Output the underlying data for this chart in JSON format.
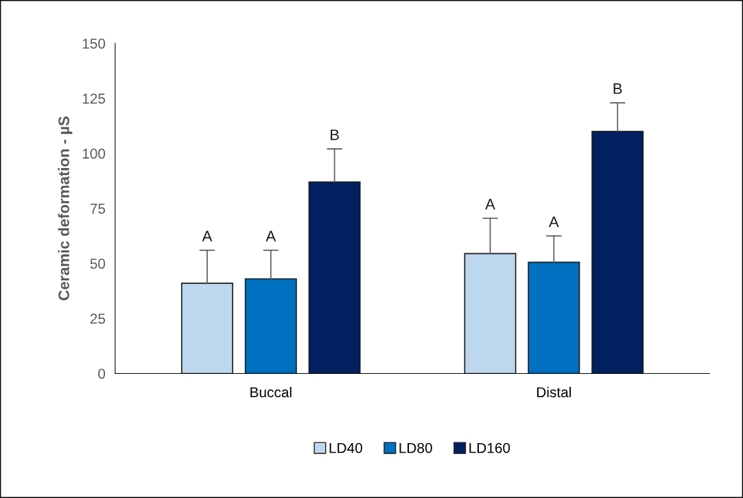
{
  "chart_data": {
    "type": "bar",
    "ylabel": "Ceramic deformation - µS",
    "categories": [
      "Buccal",
      "Distal"
    ],
    "series": [
      {
        "name": "LD40",
        "color": "#bdd7ee",
        "values": [
          41,
          54.5
        ],
        "errors": [
          [
            41,
            56
          ],
          [
            54.5,
            70.5
          ]
        ]
      },
      {
        "name": "LD80",
        "color": "#0070c0",
        "values": [
          43,
          50.5
        ],
        "errors": [
          [
            43,
            56
          ],
          [
            50.5,
            62.5
          ]
        ]
      },
      {
        "name": "LD160",
        "color": "#002060",
        "values": [
          87,
          110
        ],
        "errors": [
          [
            87,
            102
          ],
          [
            110,
            123
          ]
        ]
      }
    ],
    "annotations": [
      {
        "text": "A",
        "y": 56
      },
      {
        "text": "A",
        "y": 56
      },
      {
        "text": "B",
        "y": 102
      },
      {
        "text": "A",
        "y": 70.5
      },
      {
        "text": "A",
        "y": 62.5
      },
      {
        "text": "B",
        "y": 123
      }
    ],
    "ylim": [
      0,
      150
    ],
    "yticks": [
      0,
      25,
      50,
      75,
      100,
      125,
      150
    ],
    "grid": false,
    "legend": "bottom"
  }
}
